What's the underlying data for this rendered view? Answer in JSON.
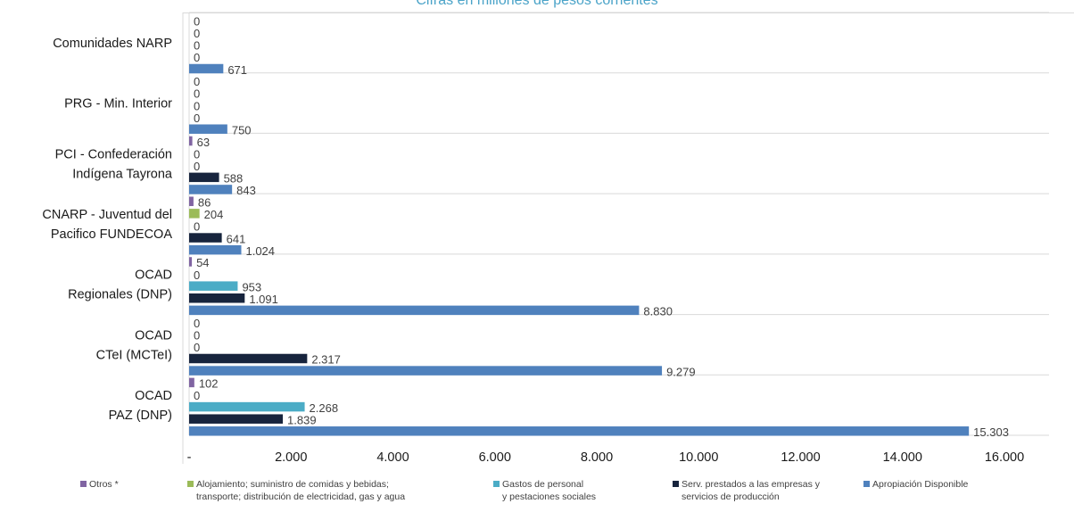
{
  "chart_data": {
    "type": "bar",
    "orientation": "horizontal",
    "subtitle": "Cifras en millones de pesos corrientes",
    "categories": [
      "Comunidades NARP",
      "PRG - Min. Interior",
      "PCI - Confederación Indígena Tayrona",
      "CNARP - Juventud del Pacifico FUNDECOA",
      "OCAD Regionales (DNP)",
      "OCAD CTeI (MCTeI)",
      "OCAD PAZ (DNP)"
    ],
    "category_lines": [
      [
        "Comunidades NARP"
      ],
      [
        "PRG - Min. Interior"
      ],
      [
        "PCI - Confederación",
        "Indígena Tayrona"
      ],
      [
        "CNARP - Juventud del",
        "Pacifico FUNDECOA"
      ],
      [
        "OCAD",
        "Regionales (DNP)"
      ],
      [
        "OCAD",
        "CTeI (MCTeI)"
      ],
      [
        "OCAD",
        "PAZ (DNP)"
      ]
    ],
    "series": [
      {
        "name": "Otros *",
        "color": "#8064a2",
        "values": [
          0,
          0,
          63,
          86,
          54,
          0,
          102
        ],
        "labels": [
          "0",
          "0",
          "63",
          "86",
          "54",
          "0",
          "102"
        ]
      },
      {
        "name": "Alojamiento; suministro de comidas y bebidas;\ntransporte; distribución de electricidad, gas y agua",
        "color": "#9bbb59",
        "values": [
          0,
          0,
          0,
          204,
          0,
          0,
          0
        ],
        "labels": [
          "0",
          "0",
          "0",
          "204",
          "0",
          "0",
          "0"
        ]
      },
      {
        "name": "Gastos de personal\ny pestaciones sociales",
        "color": "#4bacc6",
        "values": [
          0,
          0,
          0,
          0,
          953,
          0,
          2268
        ],
        "labels": [
          "0",
          "0",
          "0",
          "0",
          "953",
          "0",
          "2.268"
        ]
      },
      {
        "name": "Serv. prestados a las empresas y\nservicios de producción",
        "color": "#17243d",
        "values": [
          0,
          0,
          588,
          641,
          1091,
          2317,
          1839
        ],
        "labels": [
          "0",
          "0",
          "588",
          "641",
          "1.091",
          "2.317",
          "1.839"
        ]
      },
      {
        "name": "Apropiación Disponible",
        "color": "#4f81bd",
        "values": [
          671,
          750,
          843,
          1024,
          8830,
          9279,
          15303
        ],
        "labels": [
          "671",
          "750",
          "843",
          "1.024",
          "8.830",
          "9.279",
          "15.303"
        ]
      }
    ],
    "xlim": [
      0,
      16000
    ],
    "xticks": [
      0,
      2000,
      4000,
      6000,
      8000,
      10000,
      12000,
      14000,
      16000
    ],
    "xtick_labels": [
      "-",
      "2.000",
      "4.000",
      "6.000",
      "8.000",
      "10.000",
      "12.000",
      "14.000",
      "16.000"
    ],
    "grid": "horizontal separators between categories",
    "legend_position": "bottom"
  }
}
